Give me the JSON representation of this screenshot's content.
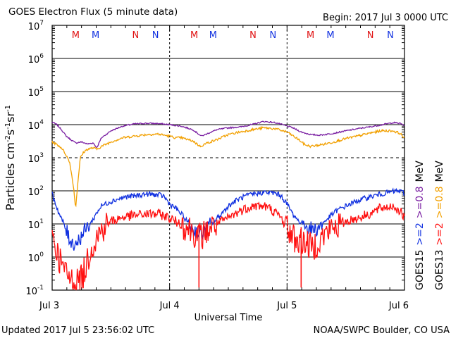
{
  "header": {
    "title": "GOES Electron Flux (5 minute data)",
    "begin": "Begin: 2017 Jul 3 0000 UTC"
  },
  "footer": {
    "updated": "Updated 2017 Jul  5 23:56:02 UTC",
    "credit": "NOAA/SWPC Boulder, CO USA"
  },
  "colors": {
    "goes15_08": "#7a1fa2",
    "goes13_08": "#f2a000",
    "goes15_2": "#1030e0",
    "goes13_2": "#ff1010",
    "marker_m": "#e01010",
    "marker_n": "#1030e0"
  },
  "chart_data": {
    "type": "line",
    "title": "GOES Electron Flux (5 minute data)",
    "xlabel": "Universal Time",
    "ylabel_parts": [
      "Particles cm",
      "-2",
      "s",
      "-1",
      "sr",
      "-1"
    ],
    "yscale": "log",
    "ylim": [
      0.1,
      10000000
    ],
    "xlim": [
      "2017-07-03 00:00",
      "2017-07-06 00:00"
    ],
    "x_ticks": [
      "Jul 3",
      "Jul 4",
      "Jul 5",
      "Jul 6"
    ],
    "y_ticks": [
      {
        "base": "10",
        "exp": "-1"
      },
      {
        "base": "10",
        "exp": "0"
      },
      {
        "base": "10",
        "exp": "1"
      },
      {
        "base": "10",
        "exp": "2"
      },
      {
        "base": "10",
        "exp": "3"
      },
      {
        "base": "10",
        "exp": "4"
      },
      {
        "base": "10",
        "exp": "5"
      },
      {
        "base": "10",
        "exp": "6"
      },
      {
        "base": "10",
        "exp": "7"
      }
    ],
    "right_labels": {
      "row1": [
        {
          "text": "GOES15",
          "color": "#000000"
        },
        {
          "text": ">=2",
          "color": "#1030e0"
        },
        {
          "text": ">=0.8",
          "color": "#7a1fa2"
        },
        {
          "text": "MeV",
          "color": "#000000"
        }
      ],
      "row2": [
        {
          "text": "GOES13",
          "color": "#000000"
        },
        {
          "text": ">=2",
          "color": "#ff1010"
        },
        {
          "text": ">=0.8",
          "color": "#f2a000"
        },
        {
          "text": "MeV",
          "color": "#000000"
        }
      ]
    },
    "markers": [
      {
        "label": "M",
        "day": 3.2,
        "color": "#e01010"
      },
      {
        "label": "M",
        "day": 3.37,
        "color": "#1030e0"
      },
      {
        "label": "N",
        "day": 3.71,
        "color": "#e01010"
      },
      {
        "label": "N",
        "day": 3.88,
        "color": "#1030e0"
      },
      {
        "label": "M",
        "day": 4.21,
        "color": "#e01010"
      },
      {
        "label": "M",
        "day": 4.37,
        "color": "#1030e0"
      },
      {
        "label": "N",
        "day": 4.71,
        "color": "#e01010"
      },
      {
        "label": "N",
        "day": 4.88,
        "color": "#1030e0"
      },
      {
        "label": "M",
        "day": 5.2,
        "color": "#e01010"
      },
      {
        "label": "M",
        "day": 5.37,
        "color": "#1030e0"
      },
      {
        "label": "N",
        "day": 5.71,
        "color": "#e01010"
      },
      {
        "label": "N",
        "day": 5.88,
        "color": "#1030e0"
      }
    ],
    "series": [
      {
        "name": "GOES15 >=0.8 MeV",
        "color": "#7a1fa2",
        "noise": 0.02,
        "x": [
          3.0,
          3.04,
          3.08,
          3.12,
          3.16,
          3.2,
          3.25,
          3.3,
          3.35,
          3.38,
          3.42,
          3.5,
          3.6,
          3.7,
          3.8,
          3.9,
          4.0,
          4.1,
          4.2,
          4.27,
          4.33,
          4.4,
          4.5,
          4.6,
          4.7,
          4.8,
          4.9,
          4.98,
          5.05,
          5.12,
          5.2,
          5.28,
          5.4,
          5.5,
          5.6,
          5.7,
          5.8,
          5.9,
          5.96,
          6.0
        ],
        "y": [
          12000,
          10000,
          7000,
          4500,
          3500,
          2800,
          3000,
          2600,
          2800,
          2000,
          4000,
          6500,
          9000,
          10500,
          11000,
          10800,
          10000,
          9000,
          7000,
          4500,
          5500,
          7000,
          8000,
          8500,
          10000,
          12500,
          11500,
          9500,
          8000,
          6000,
          5000,
          4800,
          5500,
          6500,
          7500,
          8500,
          9800,
          11500,
          11000,
          9500
        ]
      },
      {
        "name": "GOES13 >=0.8 MeV",
        "color": "#f2a000",
        "noise": 0.035,
        "x": [
          3.0,
          3.04,
          3.08,
          3.12,
          3.15,
          3.18,
          3.2,
          3.22,
          3.24,
          3.27,
          3.3,
          3.35,
          3.38,
          3.42,
          3.5,
          3.6,
          3.7,
          3.8,
          3.9,
          4.0,
          4.05,
          4.1,
          4.2,
          4.26,
          4.32,
          4.4,
          4.5,
          4.6,
          4.7,
          4.8,
          4.9,
          5.0,
          5.1,
          5.15,
          5.2,
          5.3,
          5.4,
          5.5,
          5.6,
          5.7,
          5.8,
          5.9,
          5.96,
          6.0
        ],
        "y": [
          3000,
          2500,
          2000,
          1200,
          700,
          150,
          30,
          200,
          1000,
          1500,
          1800,
          2000,
          1800,
          2200,
          3000,
          4000,
          4500,
          5000,
          5200,
          4500,
          4000,
          4000,
          3200,
          2200,
          2800,
          3500,
          5000,
          6000,
          7000,
          8000,
          7500,
          6000,
          3500,
          2500,
          2200,
          2500,
          3000,
          3800,
          4500,
          5500,
          6500,
          6500,
          5500,
          4000
        ]
      },
      {
        "name": "GOES15 >=2 MeV",
        "color": "#1030e0",
        "noise": 0.08,
        "x": [
          3.0,
          3.03,
          3.06,
          3.1,
          3.14,
          3.18,
          3.22,
          3.26,
          3.3,
          3.34,
          3.38,
          3.42,
          3.48,
          3.55,
          3.62,
          3.7,
          3.8,
          3.9,
          3.95,
          4.0,
          4.05,
          4.1,
          4.15,
          4.2,
          4.25,
          4.3,
          4.34,
          4.38,
          4.44,
          4.5,
          4.58,
          4.65,
          4.72,
          4.8,
          4.9,
          4.95,
          5.0,
          5.05,
          5.1,
          5.15,
          5.2,
          5.25,
          5.3,
          5.35,
          5.42,
          5.5,
          5.6,
          5.7,
          5.8,
          5.9,
          5.95,
          6.0
        ],
        "y": [
          80,
          40,
          20,
          10,
          4,
          2.5,
          3,
          5,
          8,
          12,
          22,
          35,
          45,
          55,
          65,
          70,
          80,
          75,
          70,
          40,
          30,
          20,
          12,
          7,
          5,
          6,
          9,
          12,
          20,
          35,
          55,
          70,
          80,
          90,
          85,
          70,
          40,
          20,
          12,
          10,
          7,
          7,
          10,
          15,
          25,
          35,
          50,
          65,
          80,
          95,
          100,
          85
        ]
      },
      {
        "name": "GOES13 >=2 MeV",
        "color": "#ff1010",
        "noise": 0.15,
        "x": [
          3.0,
          3.04,
          3.08,
          3.12,
          3.16,
          3.2,
          3.24,
          3.28,
          3.32,
          3.38,
          3.44,
          3.5,
          3.6,
          3.7,
          3.8,
          3.9,
          3.95,
          4.0,
          4.05,
          4.1,
          4.15,
          4.2,
          4.24,
          4.3,
          4.35,
          4.4,
          4.5,
          4.6,
          4.7,
          4.8,
          4.85,
          4.9,
          4.95,
          5.0,
          5.05,
          5.1,
          5.15,
          5.2,
          5.25,
          5.3,
          5.35,
          5.4,
          5.5,
          5.6,
          5.7,
          5.8,
          5.9,
          5.96,
          6.0
        ],
        "y": [
          5,
          1.5,
          0.6,
          0.3,
          0.2,
          0.2,
          0.2,
          0.4,
          1.5,
          4,
          8,
          12,
          16,
          18,
          20,
          20,
          18,
          15,
          12,
          10,
          8,
          6,
          4,
          5,
          8,
          10,
          15,
          25,
          35,
          35,
          30,
          22,
          15,
          8,
          4,
          3,
          3,
          2,
          2.5,
          4,
          6,
          8,
          12,
          15,
          20,
          30,
          35,
          25,
          15
        ],
        "spikes": [
          {
            "x": 4.25,
            "y": 0.12
          },
          {
            "x": 5.12,
            "y": 0.12
          }
        ]
      }
    ]
  }
}
